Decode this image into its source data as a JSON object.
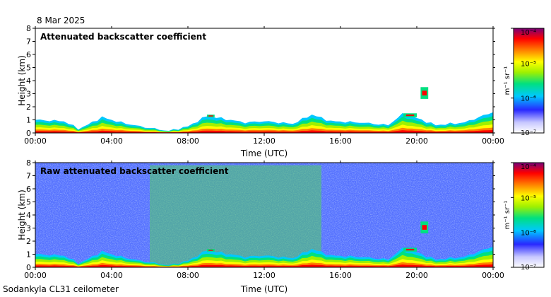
{
  "date": "8 Mar 2025",
  "footer": "Sodankyla CL31 ceilometer",
  "colorbar": {
    "label": "m⁻¹ sr⁻¹",
    "ticks": [
      "10⁻⁷",
      "10⁻⁶",
      "10⁻⁵",
      "10⁻⁴"
    ],
    "colors": [
      "#ffffff",
      "#c8c8ff",
      "#2828ff",
      "#00c8ff",
      "#00e080",
      "#a0f000",
      "#ffff00",
      "#ff8000",
      "#ff0000",
      "#780078"
    ]
  },
  "chart_data": [
    {
      "type": "heatmap",
      "title": "Attenuated backscatter coefficient",
      "xlabel": "Time (UTC)",
      "ylabel": "Height (km)",
      "xticks": [
        "00:00",
        "04:00",
        "08:00",
        "12:00",
        "16:00",
        "20:00",
        "00:00"
      ],
      "yticks": [
        "0",
        "1",
        "2",
        "3",
        "4",
        "5",
        "6",
        "7",
        "8"
      ],
      "xlim_hours": [
        0,
        24
      ],
      "ylim_km": [
        0,
        8
      ],
      "colorscale": "log",
      "clim": [
        1e-07,
        0.0001
      ],
      "boundary_layer_top_km": [
        [
          0,
          1.0
        ],
        [
          1.5,
          0.9
        ],
        [
          2.3,
          0.3
        ],
        [
          3.5,
          1.2
        ],
        [
          4.5,
          0.8
        ],
        [
          5.5,
          0.5
        ],
        [
          7.0,
          0.15
        ],
        [
          8.0,
          0.5
        ],
        [
          9.0,
          1.3
        ],
        [
          11.0,
          0.8
        ],
        [
          12.0,
          0.9
        ],
        [
          13.5,
          0.7
        ],
        [
          14.5,
          1.4
        ],
        [
          15.5,
          0.9
        ],
        [
          17.0,
          0.8
        ],
        [
          18.5,
          0.6
        ],
        [
          19.3,
          1.5
        ],
        [
          21.0,
          0.6
        ],
        [
          22.5,
          0.8
        ],
        [
          24.0,
          1.6
        ]
      ],
      "cloud_features": [
        {
          "time_h": [
            20.2,
            20.6
          ],
          "height_km": [
            2.6,
            3.5
          ]
        },
        {
          "time_h": [
            19.3,
            20.0
          ],
          "height_km": [
            1.2,
            1.5
          ]
        },
        {
          "time_h": [
            9.0,
            9.4
          ],
          "height_km": [
            1.2,
            1.4
          ]
        }
      ]
    },
    {
      "type": "heatmap",
      "title": "Raw attenuated backscatter coefficient",
      "xlabel": "Time (UTC)",
      "ylabel": "Height (km)",
      "xticks": [
        "00:00",
        "04:00",
        "08:00",
        "12:00",
        "16:00",
        "20:00",
        "00:00"
      ],
      "yticks": [
        "0",
        "1",
        "2",
        "3",
        "4",
        "5",
        "6",
        "7",
        "8"
      ],
      "xlim_hours": [
        0,
        24
      ],
      "ylim_km": [
        0,
        8
      ],
      "colorscale": "log",
      "clim": [
        1e-07,
        0.0001
      ],
      "noise_background": "blue",
      "elevated_noise_period_h": [
        6.0,
        15.0
      ]
    }
  ]
}
